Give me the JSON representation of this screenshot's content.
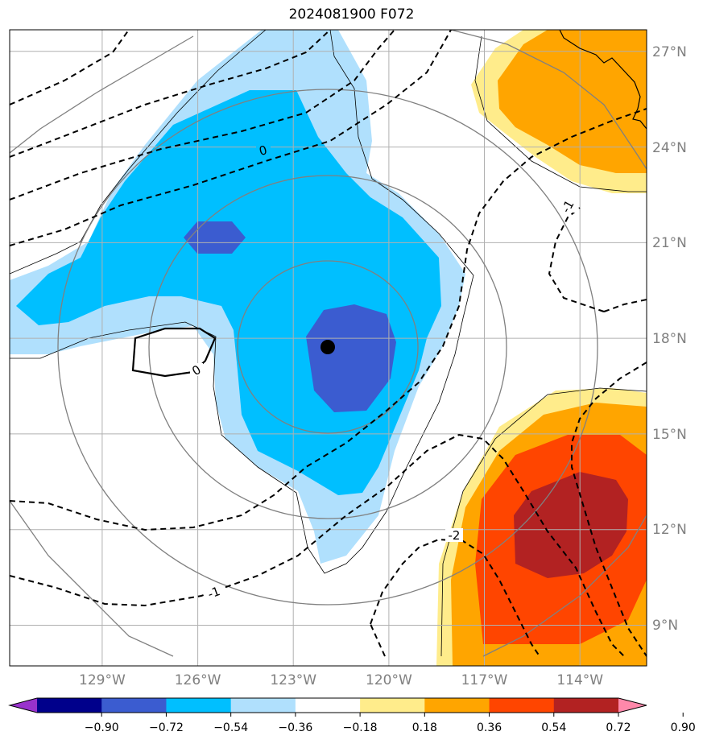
{
  "title": "2024081900 F072",
  "map": {
    "lon_range": [
      -131.0,
      -111.0
    ],
    "lat_range": [
      7.8,
      27.6
    ],
    "lon_ticks": [
      -129,
      -126,
      -123,
      -120,
      -117,
      -114
    ],
    "lon_tick_labels": [
      "129°W",
      "126°W",
      "123°W",
      "120°W",
      "117°W",
      "114°W"
    ],
    "lat_ticks": [
      9,
      12,
      15,
      18,
      21,
      24,
      27
    ],
    "lat_tick_labels": [
      "9°N",
      "12°N",
      "15°N",
      "18°N",
      "21°N",
      "24°N",
      "27°N"
    ],
    "storm_center": {
      "lon": -121.0,
      "lat": 17.7
    },
    "contour_labels": [
      "0",
      "0",
      "-1",
      "-1",
      "-2"
    ],
    "range_rings_deg": [
      2.8,
      5.5,
      8.4
    ]
  },
  "colorbar": {
    "tick_labels": [
      "−0.90",
      "−0.72",
      "−0.54",
      "−0.36",
      "−0.18",
      "0.18",
      "0.36",
      "0.54",
      "0.72",
      "0.90"
    ],
    "colors": [
      "#9932cc",
      "#00008b",
      "#3b5cd0",
      "#00bfff",
      "#b0e0fd",
      "#ffffff",
      "#ffec8b",
      "#ffa500",
      "#ff4500",
      "#b22222",
      "#ff88aa"
    ]
  },
  "colors": {
    "fill_dark_blue": "#3b5cd0",
    "fill_blue": "#00bfff",
    "fill_light_blue": "#b0e0fd",
    "fill_yellow": "#ffec8b",
    "fill_orange": "#ffa500",
    "fill_red_orange": "#ff4500",
    "fill_dark_red": "#b22222",
    "ring": "#808080",
    "grid": "#b0b0b0",
    "tick_text": "#808080"
  }
}
